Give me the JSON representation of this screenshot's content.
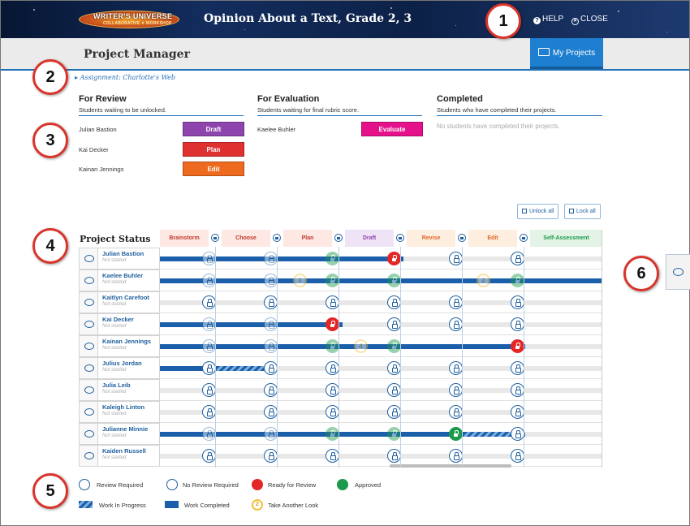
{
  "header": {
    "logo_line1": "WRITER'S UNIVERSE",
    "logo_line2": "COLLABORATIVE ✦ WORKSHOP",
    "title": "Opinion About a Text, Grade 2, 3",
    "help": "HELP",
    "close": "CLOSE"
  },
  "subheader": {
    "title": "Project Manager",
    "my_projects": "My Projects"
  },
  "breadcrumb": "Assignment: Charlotte's Web",
  "review": {
    "title": "For Review",
    "subtitle": "Students waiting to be unlocked.",
    "students": [
      {
        "name": "Julian Bastion",
        "action": "Draft",
        "color": "#8e44ad"
      },
      {
        "name": "Kai Decker",
        "action": "Plan",
        "color": "#e03131"
      },
      {
        "name": "Kainan Jennings",
        "action": "Edit",
        "color": "#ee6a1f"
      }
    ]
  },
  "evaluation": {
    "title": "For Evaluation",
    "subtitle": "Students waiting for final rubric score.",
    "students": [
      {
        "name": "Kaelee Buhler",
        "action": "Evaluate",
        "color": "#e5118a"
      }
    ]
  },
  "completed": {
    "title": "Completed",
    "subtitle": "Students who have completed their projects.",
    "empty": "No students have completed their projects."
  },
  "lock_buttons": {
    "unlock_all": "Unlock all",
    "lock_all": "Lock all"
  },
  "status": {
    "title": "Project Status",
    "stages": [
      {
        "label": "Brainstorm",
        "color": "#c0392b",
        "bg": "#fde8e3"
      },
      {
        "label": "Choose",
        "color": "#c0392b",
        "bg": "#fde8e3"
      },
      {
        "label": "Plan",
        "color": "#c0392b",
        "bg": "#fde8e3"
      },
      {
        "label": "Draft",
        "color": "#8e44ad",
        "bg": "#efe4f6"
      },
      {
        "label": "Revise",
        "color": "#e0662a",
        "bg": "#fdeee0"
      },
      {
        "label": "Edit",
        "color": "#e0662a",
        "bg": "#fdeee0"
      },
      {
        "label": "Self-Assessment",
        "color": "#1a9a4a",
        "bg": "#e3f4e6"
      }
    ],
    "rows": [
      {
        "name": "Julian Bastion",
        "status": "Not started"
      },
      {
        "name": "Kaelee Buhler",
        "status": "Not started"
      },
      {
        "name": "Kaitlyn Carefoot",
        "status": "Not started"
      },
      {
        "name": "Kai Decker",
        "status": "Not started"
      },
      {
        "name": "Kainan Jennings",
        "status": "Not started"
      },
      {
        "name": "Julius Jordan",
        "status": "Not started"
      },
      {
        "name": "Julia Leib",
        "status": "Not started"
      },
      {
        "name": "Kaleigh Linton",
        "status": "Not started"
      },
      {
        "name": "Julianne Minnie",
        "status": "Not started"
      },
      {
        "name": "Kaiden Russell",
        "status": "Not started"
      }
    ]
  },
  "legend": {
    "review_required": "Review Required",
    "no_review_required": "No Review Required",
    "ready_for_review": "Ready for Review",
    "approved": "Approved",
    "work_in_progress": "Work In Progress",
    "work_completed": "Work Completed",
    "take_another_look": "Take Another Look",
    "look_number": "2"
  },
  "callouts": [
    "1",
    "2",
    "3",
    "4",
    "5",
    "6"
  ]
}
